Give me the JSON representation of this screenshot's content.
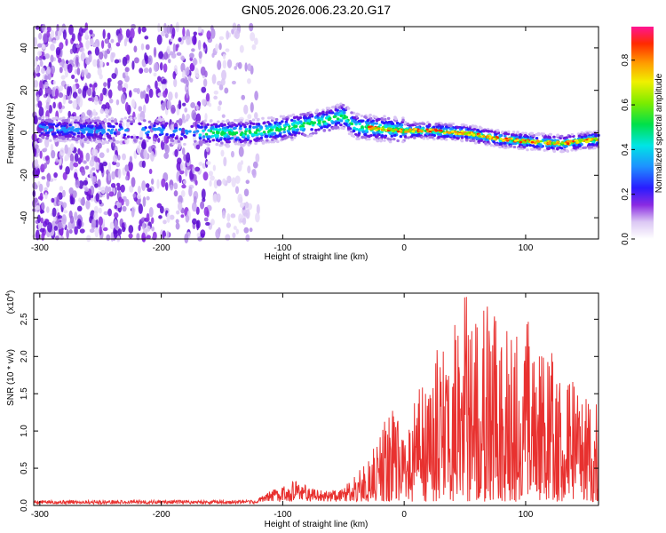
{
  "title": "GN05.2026.006.23.20.G17",
  "chart_data": [
    {
      "type": "heatmap",
      "title": "GN05.2026.006.23.20.G17",
      "xlabel": "Height of straight line (km)",
      "ylabel": "Frequency (Hz)",
      "xlim": [
        -305,
        160
      ],
      "ylim": [
        -50,
        50
      ],
      "xticks": [
        "-300",
        "-200",
        "-100",
        "0",
        "100"
      ],
      "yticks": [
        "-40",
        "-20",
        "0",
        "20",
        "40"
      ],
      "colorbar": {
        "label": "Normalized spectral amplitude",
        "range": [
          0.0,
          0.95
        ],
        "ticks": [
          "0.0",
          "0.2",
          "0.4",
          "0.6",
          "0.8"
        ]
      },
      "ridge": {
        "x": [
          -300,
          -250,
          -200,
          -165,
          -130,
          -100,
          -70,
          -50,
          -40,
          -20,
          0,
          20,
          50,
          80,
          100,
          130,
          160
        ],
        "y": [
          2,
          1,
          1,
          0,
          0,
          2,
          5,
          8,
          3,
          2,
          1,
          1,
          0,
          -3,
          -4,
          -5,
          -3
        ]
      }
    },
    {
      "type": "line",
      "series_name": "SNR",
      "color": "#e8312f",
      "xlabel": "Height of straight line (km)",
      "ylabel": "SNR (10 * v/v)",
      "exponent_label": "(x10",
      "exponent_power": "4",
      "exponent_close": ")",
      "xlim": [
        -305,
        160
      ],
      "ylim": [
        0,
        2.85
      ],
      "xticks": [
        "-300",
        "-200",
        "-100",
        "0",
        "100"
      ],
      "yticks": [
        "0.0",
        "0.5",
        "1.0",
        "1.5",
        "2.0",
        "2.5"
      ],
      "envelope": {
        "x": [
          -305,
          -120,
          -110,
          -90,
          -70,
          -50,
          -40,
          -30,
          -20,
          -10,
          0,
          10,
          20,
          30,
          40,
          50,
          60,
          70,
          80,
          90,
          100,
          110,
          120,
          130,
          140,
          150,
          160
        ],
        "y": [
          0.05,
          0.05,
          0.15,
          0.28,
          0.15,
          0.2,
          0.35,
          0.6,
          1.0,
          1.4,
          0.8,
          1.5,
          1.6,
          2.3,
          2.4,
          2.85,
          2.4,
          2.75,
          2.2,
          2.4,
          2.6,
          2.0,
          2.2,
          1.7,
          1.6,
          1.5,
          1.3
        ]
      }
    }
  ]
}
